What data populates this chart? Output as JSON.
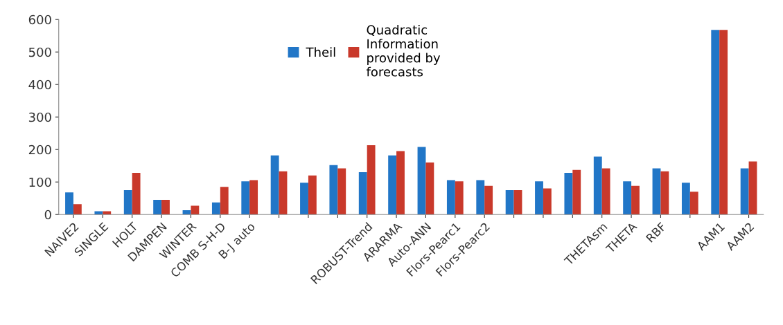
{
  "chart_data": {
    "type": "bar",
    "categories": [
      "NAIVE2",
      "SINGLE",
      "HOLT",
      "DAMPEN",
      "WINTER",
      "COMB S-H-D",
      "B-J auto",
      null,
      null,
      null,
      "ROBUST-Trend",
      "ARARMA",
      "Auto-ANN",
      "Flors-Pearc1",
      "Flors-Pearc2",
      null,
      null,
      null,
      "THETAsm",
      "THETA",
      "RBF",
      null,
      "AAM1",
      "AAM2"
    ],
    "series": [
      {
        "name": "Theil",
        "color": "#2176c7",
        "values": [
          68,
          10,
          75,
          45,
          13,
          37,
          102,
          182,
          98,
          152,
          130,
          182,
          208,
          106,
          106,
          75,
          102,
          128,
          178,
          102,
          142,
          98,
          568,
          142
        ]
      },
      {
        "name": "Quadratic\nInformation\nprovided by\nforecasts",
        "color": "#c9392b",
        "values": [
          32,
          10,
          128,
          45,
          27,
          85,
          106,
          133,
          120,
          142,
          213,
          195,
          160,
          102,
          88,
          75,
          80,
          137,
          142,
          88,
          133,
          70,
          568,
          163
        ]
      }
    ],
    "ylim": [
      0,
      600
    ],
    "yticks": [
      0,
      100,
      200,
      300,
      400,
      500,
      600
    ],
    "grid": false,
    "legend": "top"
  }
}
